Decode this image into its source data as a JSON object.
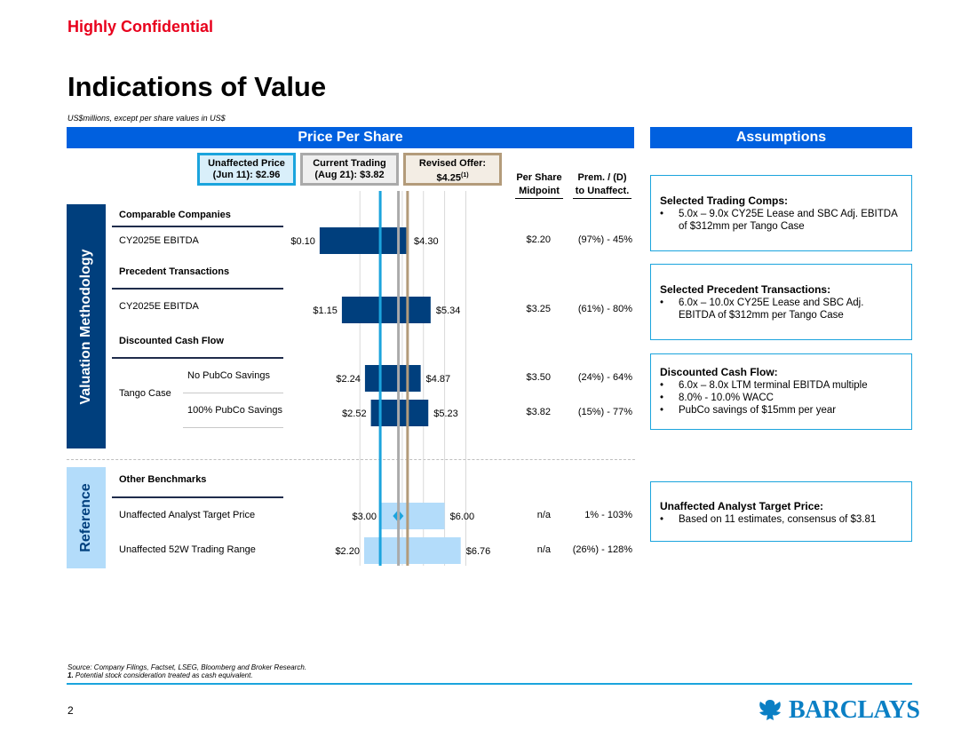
{
  "header": {
    "confidential": "Highly Confidential",
    "title": "Indications of Value",
    "subtitle": "US$millions, except per share values in US$"
  },
  "panels": {
    "price_header": "Price Per Share",
    "assumptions_header": "Assumptions"
  },
  "reference_prices": [
    {
      "line1": "Unaffected Price",
      "line2": "(Jun 11): $2.96",
      "value": 2.96,
      "color": "#1ba4dd"
    },
    {
      "line1": "Current Trading",
      "line2": "(Aug 21): $3.82",
      "value": 3.82,
      "color": "#aaaaaa"
    },
    {
      "line1": "Revised Offer:",
      "line2": "$4.25",
      "sup": "(1)",
      "value": 4.25,
      "color": "#b39b7a"
    }
  ],
  "columns": {
    "midpoint_l1": "Per Share",
    "midpoint_l2": "Midpoint",
    "prem_l1": "Prem. / (D)",
    "prem_l2": "to Unaffect."
  },
  "side_labels": {
    "valuation": "Valuation Methodology",
    "reference": "Reference"
  },
  "sections": {
    "comps": "Comparable Companies",
    "precedents": "Precedent Transactions",
    "dcf": "Discounted Cash Flow",
    "other": "Other Benchmarks",
    "tango_case": "Tango Case"
  },
  "chart_data": {
    "type": "bar",
    "orientation": "horizontal-range",
    "bars": [
      {
        "label": "CY2025E EBITDA",
        "section": "Comparable Companies",
        "low": 0.1,
        "high": 4.3,
        "low_label": "$0.10",
        "high_label": "$4.30",
        "midpoint": "$2.20",
        "premium": "(97%) - 45%",
        "color": "#003f7d"
      },
      {
        "label": "CY2025E EBITDA",
        "section": "Precedent Transactions",
        "low": 1.15,
        "high": 5.34,
        "low_label": "$1.15",
        "high_label": "$5.34",
        "midpoint": "$3.25",
        "premium": "(61%) - 80%",
        "color": "#003f7d"
      },
      {
        "label": "No PubCo Savings",
        "section": "Discounted Cash Flow",
        "low": 2.24,
        "high": 4.87,
        "low_label": "$2.24",
        "high_label": "$4.87",
        "midpoint": "$3.50",
        "premium": "(24%) - 64%",
        "color": "#003f7d"
      },
      {
        "label": "100% PubCo Savings",
        "section": "Discounted Cash Flow",
        "low": 2.52,
        "high": 5.23,
        "low_label": "$2.52",
        "high_label": "$5.23",
        "midpoint": "$3.82",
        "premium": "(15%) - 77%",
        "color": "#003f7d"
      },
      {
        "label": "Unaffected Analyst Target Price",
        "section": "Other Benchmarks",
        "low": 3.0,
        "high": 6.0,
        "marker": 3.81,
        "low_label": "$3.00",
        "high_label": "$6.00",
        "midpoint": "n/a",
        "premium": "1% - 103%",
        "color": "#b3dcfa"
      },
      {
        "label": "Unaffected 52W Trading Range",
        "section": "Other Benchmarks",
        "low": 2.2,
        "high": 6.76,
        "low_label": "$2.20",
        "high_label": "$6.76",
        "midpoint": "n/a",
        "premium": "(26%) - 128%",
        "color": "#b3dcfa"
      }
    ],
    "gridlines": [
      2,
      3,
      4,
      5,
      6,
      7
    ],
    "reference_lines": [
      2.96,
      3.82,
      4.25
    ]
  },
  "assumptions": [
    {
      "title": "Selected Trading Comps:",
      "bullets": [
        "5.0x – 9.0x CY25E Lease and SBC Adj. EBITDA of $312mm per Tango Case"
      ]
    },
    {
      "title": "Selected Precedent Transactions:",
      "bullets": [
        "6.0x – 10.0x CY25E Lease and SBC Adj. EBITDA of $312mm per Tango Case"
      ]
    },
    {
      "title": "Discounted Cash Flow:",
      "bullets": [
        "6.0x – 8.0x LTM terminal EBITDA multiple",
        "8.0% - 10.0% WACC",
        "PubCo savings of $15mm per year"
      ]
    },
    {
      "title": "Unaffected Analyst Target Price:",
      "bullets": [
        "Based on 11 estimates, consensus of $3.81"
      ]
    }
  ],
  "footer": {
    "source": "Source: Company Filings, Factset, LSEG, Bloomberg and Broker Research.",
    "note_num": "1.",
    "note": " Potential stock consideration treated as cash equivalent.",
    "page": "2",
    "brand": "BARCLAYS"
  },
  "colors": {
    "brand_blue": "#0060df",
    "navy": "#003f7d",
    "light_blue": "#b3dcfa",
    "confidential_red": "#e8001c"
  }
}
